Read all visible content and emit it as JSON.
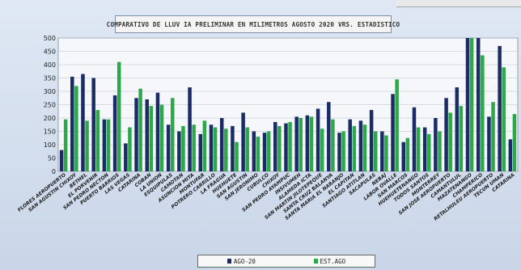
{
  "colors": {
    "series1": "#1a2b66",
    "series2": "#2ca84a",
    "plot_bg": "#f5f7fa",
    "grid": "#b9c2cc"
  },
  "chart_data": {
    "type": "bar",
    "title": "COMPARATIVO DE LLUV IA PRELIMINAR EN MILIMETROS AGOSTO 2020 VRS. ESTADISTICO",
    "ylim": [
      0,
      500
    ],
    "yticks": [
      0,
      50,
      100,
      150,
      200,
      250,
      300,
      350,
      400,
      450,
      500
    ],
    "grid": true,
    "legend_position": "bottom",
    "categories": [
      "FLORES AEROPUERTO",
      "SAN AGUSTIN CHIXOY",
      "BETHEL",
      "EL PORVENIR",
      "SAN PEDRO NECTON",
      "PUERTO BARRIOS",
      "LAS VEGAS",
      "CATARINA",
      "COBAN",
      "LA UNION",
      "ESQUIPULAS",
      "CAMOTAN",
      "ASUNCION MITA",
      "MONTUFAR",
      "POTRERO CARRILLO",
      "LA FRAGUA",
      "HUEHUETE",
      "SAN AGUSTIN",
      "SAN JERONIMO",
      "CUBULCO",
      "CHIXOY",
      "SAN PEDRO AYAMPUC",
      "INSIVUMEH",
      "ALAMEDA ICTA",
      "SAN MARTIN JILOTEPEQUE",
      "SANTA CRUZ BALANYA",
      "SANTA MARIA EL NARANJO",
      "EL CAPITAN",
      "SANTIAGO ATITLAN",
      "SACAPULAS",
      "NEBAJ",
      "LABOR OVALLE",
      "SAN MARCOS",
      "HUEHUETENANGO",
      "TODOS SANTOS",
      "MONTERREY",
      "SAN JOSE AEROPUERTO",
      "CAMANTULUL",
      "MAZATENANGO",
      "CHAMPERICO",
      "RETALHULEU AEROPUERTO",
      "TECUN UMAN",
      "CATARINA"
    ],
    "series": [
      {
        "name": "AGO-20",
        "values": [
          80,
          355,
          365,
          350,
          195,
          285,
          105,
          275,
          270,
          295,
          175,
          150,
          315,
          140,
          175,
          200,
          170,
          220,
          150,
          145,
          185,
          180,
          205,
          210,
          235,
          260,
          145,
          195,
          190,
          230,
          150,
          290,
          110,
          240,
          165,
          200,
          275,
          315,
          500,
          500,
          205,
          470,
          120
        ]
      },
      {
        "name": "EST.AGO",
        "values": [
          195,
          320,
          190,
          230,
          195,
          410,
          165,
          310,
          245,
          250,
          275,
          170,
          175,
          190,
          165,
          160,
          110,
          165,
          130,
          150,
          170,
          185,
          200,
          205,
          160,
          195,
          150,
          170,
          175,
          150,
          135,
          345,
          125,
          165,
          140,
          150,
          220,
          245,
          500,
          435,
          260,
          390,
          215
        ]
      }
    ]
  },
  "legend": {
    "series1_label": "AGO-20",
    "series2_label": "EST.AGO"
  }
}
